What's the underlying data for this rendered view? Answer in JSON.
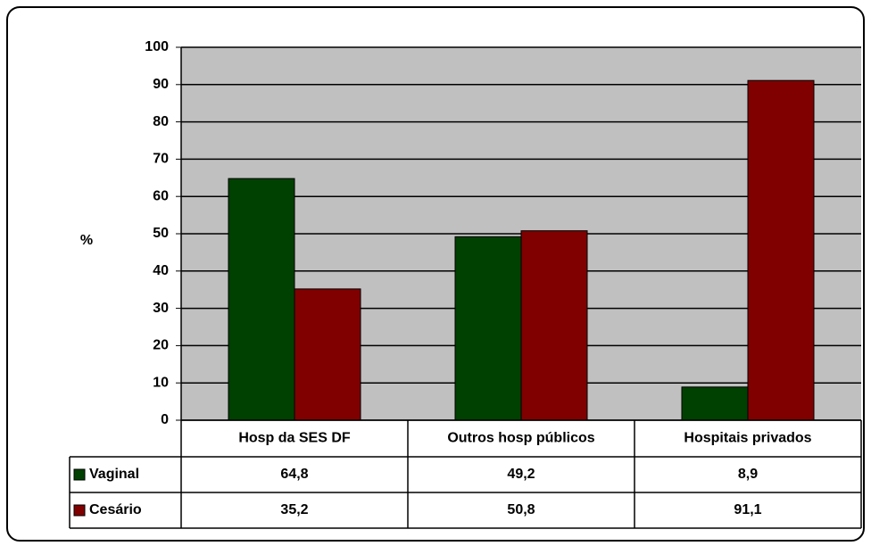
{
  "chart_data": {
    "type": "bar",
    "y_label": "%",
    "categories": [
      "Hosp da SES DF",
      "Outros hosp públicos",
      "Hospitais privados"
    ],
    "series": [
      {
        "name": "Vaginal",
        "color": "#004000",
        "values": [
          64.8,
          49.2,
          8.9
        ],
        "value_labels": [
          "64,8",
          "49,2",
          "8,9"
        ]
      },
      {
        "name": "Cesário",
        "color": "#800000",
        "values": [
          35.2,
          50.8,
          91.1
        ],
        "value_labels": [
          "35,2",
          "50,8",
          "91,1"
        ]
      }
    ],
    "ylim": [
      0,
      100
    ],
    "yticks": [
      0,
      10,
      20,
      30,
      40,
      50,
      60,
      70,
      80,
      90,
      100
    ],
    "grid": true,
    "plot_background": "#c0c0c0"
  }
}
